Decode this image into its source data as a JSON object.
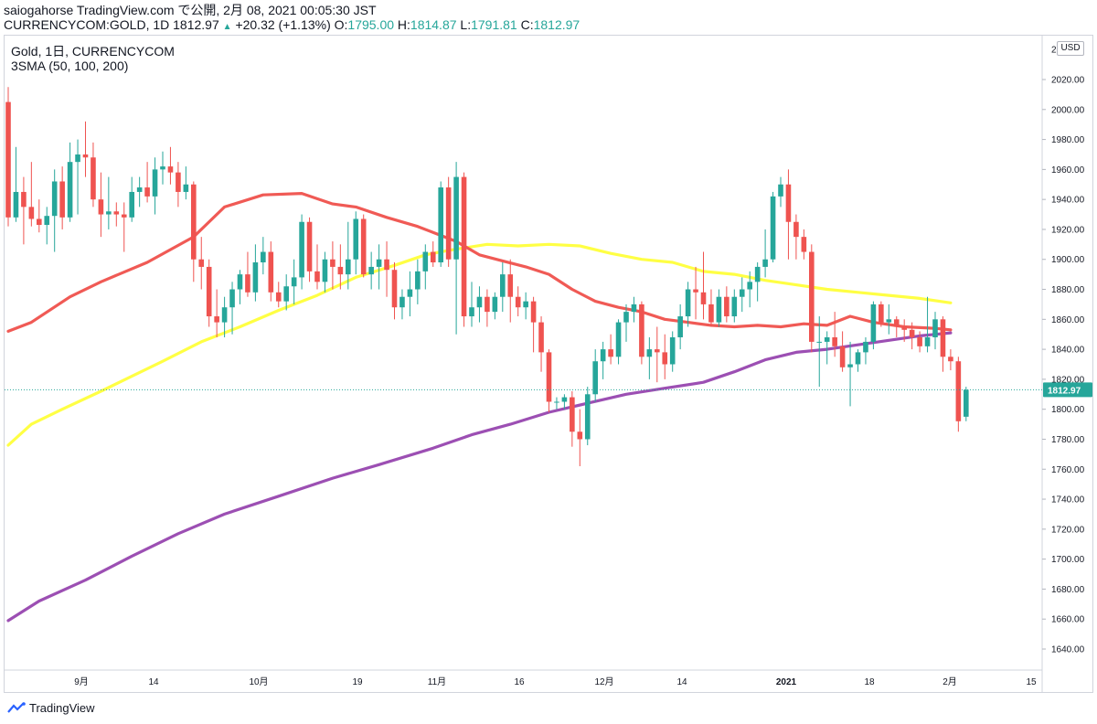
{
  "header": {
    "publish_line": "saiogahorse TradingView.com で公開, 2月 08, 2021 00:05:30 JST",
    "symbol_text": "CURRENCYCOM:GOLD, 1D 1812.97",
    "change_arrow": "▲",
    "change": "+20.32 (+1.13%)",
    "o_label": "O:",
    "o_value": "1795.00",
    "h_label": "H:",
    "h_value": "1814.87",
    "l_label": "L:",
    "l_value": "1791.81",
    "c_label": "C:",
    "c_value": "1812.97"
  },
  "legend": {
    "title": "Gold, 1日, CURRENCYCOM",
    "indicator": "3SMA (50, 100, 200)"
  },
  "currency_badge": "USD",
  "footer": {
    "brand": "TradingView",
    "logo_icon": "tradingview-logo-icon"
  },
  "colors": {
    "up": "#26a69a",
    "down": "#ef5350",
    "sma50": "#f05a55",
    "sma100": "#ffff44",
    "sma200": "#9c4fb3",
    "last_price_bg": "#26a69a"
  },
  "chart_data": {
    "type": "candlestick",
    "title": "Gold, 1日, CURRENCYCOM",
    "ylim": [
      1628,
      2036
    ],
    "y_ticks": [
      1640,
      1660,
      1680,
      1700,
      1720,
      1740,
      1760,
      1780,
      1800,
      1820,
      1840,
      1860,
      1880,
      1900,
      1920,
      1940,
      1960,
      1980,
      2000,
      2020
    ],
    "x_ticks": [
      "9月",
      "14",
      "10月",
      "19",
      "11月",
      "16",
      "12月",
      "14",
      "2021",
      "18",
      "2月",
      "15"
    ],
    "last_price": "1812.97",
    "candles": [
      {
        "o": 2005,
        "h": 2015,
        "l": 1922,
        "c": 1928
      },
      {
        "o": 1928,
        "h": 1975,
        "l": 1925,
        "c": 1945
      },
      {
        "o": 1945,
        "h": 1955,
        "l": 1910,
        "c": 1935
      },
      {
        "o": 1935,
        "h": 1965,
        "l": 1922,
        "c": 1927
      },
      {
        "o": 1927,
        "h": 1940,
        "l": 1918,
        "c": 1923
      },
      {
        "o": 1923,
        "h": 1935,
        "l": 1910,
        "c": 1929
      },
      {
        "o": 1929,
        "h": 1960,
        "l": 1905,
        "c": 1952
      },
      {
        "o": 1952,
        "h": 1962,
        "l": 1920,
        "c": 1928
      },
      {
        "o": 1928,
        "h": 1978,
        "l": 1925,
        "c": 1965
      },
      {
        "o": 1965,
        "h": 1980,
        "l": 1930,
        "c": 1970
      },
      {
        "o": 1970,
        "h": 1992,
        "l": 1955,
        "c": 1968
      },
      {
        "o": 1968,
        "h": 1978,
        "l": 1935,
        "c": 1940
      },
      {
        "o": 1940,
        "h": 1958,
        "l": 1915,
        "c": 1930
      },
      {
        "o": 1930,
        "h": 1955,
        "l": 1920,
        "c": 1932
      },
      {
        "o": 1932,
        "h": 1938,
        "l": 1922,
        "c": 1930
      },
      {
        "o": 1930,
        "h": 1938,
        "l": 1905,
        "c": 1928
      },
      {
        "o": 1928,
        "h": 1955,
        "l": 1925,
        "c": 1945
      },
      {
        "o": 1945,
        "h": 1955,
        "l": 1935,
        "c": 1948
      },
      {
        "o": 1948,
        "h": 1965,
        "l": 1938,
        "c": 1942
      },
      {
        "o": 1942,
        "h": 1968,
        "l": 1930,
        "c": 1960
      },
      {
        "o": 1960,
        "h": 1972,
        "l": 1950,
        "c": 1962
      },
      {
        "o": 1962,
        "h": 1975,
        "l": 1950,
        "c": 1958
      },
      {
        "o": 1958,
        "h": 1965,
        "l": 1935,
        "c": 1945
      },
      {
        "o": 1945,
        "h": 1962,
        "l": 1940,
        "c": 1950
      },
      {
        "o": 1950,
        "h": 1952,
        "l": 1885,
        "c": 1900
      },
      {
        "o": 1900,
        "h": 1915,
        "l": 1880,
        "c": 1895
      },
      {
        "o": 1895,
        "h": 1900,
        "l": 1855,
        "c": 1862
      },
      {
        "o": 1862,
        "h": 1880,
        "l": 1848,
        "c": 1858
      },
      {
        "o": 1858,
        "h": 1875,
        "l": 1848,
        "c": 1868
      },
      {
        "o": 1868,
        "h": 1885,
        "l": 1850,
        "c": 1880
      },
      {
        "o": 1880,
        "h": 1893,
        "l": 1870,
        "c": 1890
      },
      {
        "o": 1890,
        "h": 1905,
        "l": 1875,
        "c": 1878
      },
      {
        "o": 1878,
        "h": 1910,
        "l": 1872,
        "c": 1898
      },
      {
        "o": 1898,
        "h": 1915,
        "l": 1890,
        "c": 1905
      },
      {
        "o": 1905,
        "h": 1912,
        "l": 1872,
        "c": 1878
      },
      {
        "o": 1878,
        "h": 1885,
        "l": 1868,
        "c": 1872
      },
      {
        "o": 1872,
        "h": 1890,
        "l": 1866,
        "c": 1882
      },
      {
        "o": 1882,
        "h": 1900,
        "l": 1870,
        "c": 1888
      },
      {
        "o": 1888,
        "h": 1930,
        "l": 1880,
        "c": 1925
      },
      {
        "o": 1925,
        "h": 1928,
        "l": 1885,
        "c": 1892
      },
      {
        "o": 1892,
        "h": 1910,
        "l": 1880,
        "c": 1885
      },
      {
        "o": 1885,
        "h": 1905,
        "l": 1878,
        "c": 1900
      },
      {
        "o": 1900,
        "h": 1912,
        "l": 1880,
        "c": 1895
      },
      {
        "o": 1895,
        "h": 1910,
        "l": 1880,
        "c": 1890
      },
      {
        "o": 1890,
        "h": 1925,
        "l": 1880,
        "c": 1900
      },
      {
        "o": 1900,
        "h": 1932,
        "l": 1890,
        "c": 1927
      },
      {
        "o": 1927,
        "h": 1930,
        "l": 1888,
        "c": 1890
      },
      {
        "o": 1890,
        "h": 1905,
        "l": 1880,
        "c": 1895
      },
      {
        "o": 1895,
        "h": 1910,
        "l": 1880,
        "c": 1900
      },
      {
        "o": 1900,
        "h": 1912,
        "l": 1875,
        "c": 1893
      },
      {
        "o": 1893,
        "h": 1898,
        "l": 1860,
        "c": 1868
      },
      {
        "o": 1868,
        "h": 1880,
        "l": 1860,
        "c": 1875
      },
      {
        "o": 1875,
        "h": 1892,
        "l": 1862,
        "c": 1880
      },
      {
        "o": 1880,
        "h": 1900,
        "l": 1870,
        "c": 1892
      },
      {
        "o": 1892,
        "h": 1910,
        "l": 1880,
        "c": 1905
      },
      {
        "o": 1905,
        "h": 1912,
        "l": 1895,
        "c": 1898
      },
      {
        "o": 1898,
        "h": 1952,
        "l": 1895,
        "c": 1948
      },
      {
        "o": 1948,
        "h": 1955,
        "l": 1895,
        "c": 1900
      },
      {
        "o": 1900,
        "h": 1965,
        "l": 1850,
        "c": 1955
      },
      {
        "o": 1955,
        "h": 1958,
        "l": 1855,
        "c": 1862
      },
      {
        "o": 1862,
        "h": 1885,
        "l": 1855,
        "c": 1868
      },
      {
        "o": 1868,
        "h": 1882,
        "l": 1858,
        "c": 1875
      },
      {
        "o": 1875,
        "h": 1880,
        "l": 1855,
        "c": 1865
      },
      {
        "o": 1865,
        "h": 1878,
        "l": 1860,
        "c": 1875
      },
      {
        "o": 1875,
        "h": 1898,
        "l": 1865,
        "c": 1890
      },
      {
        "o": 1890,
        "h": 1900,
        "l": 1858,
        "c": 1875
      },
      {
        "o": 1875,
        "h": 1882,
        "l": 1862,
        "c": 1868
      },
      {
        "o": 1868,
        "h": 1878,
        "l": 1860,
        "c": 1872
      },
      {
        "o": 1872,
        "h": 1875,
        "l": 1838,
        "c": 1858
      },
      {
        "o": 1858,
        "h": 1862,
        "l": 1825,
        "c": 1838
      },
      {
        "o": 1838,
        "h": 1840,
        "l": 1798,
        "c": 1805
      },
      {
        "o": 1805,
        "h": 1808,
        "l": 1800,
        "c": 1805
      },
      {
        "o": 1805,
        "h": 1810,
        "l": 1800,
        "c": 1808
      },
      {
        "o": 1808,
        "h": 1812,
        "l": 1775,
        "c": 1785
      },
      {
        "o": 1785,
        "h": 1800,
        "l": 1762,
        "c": 1780
      },
      {
        "o": 1780,
        "h": 1815,
        "l": 1776,
        "c": 1810
      },
      {
        "o": 1810,
        "h": 1840,
        "l": 1805,
        "c": 1832
      },
      {
        "o": 1832,
        "h": 1845,
        "l": 1820,
        "c": 1840
      },
      {
        "o": 1840,
        "h": 1850,
        "l": 1830,
        "c": 1835
      },
      {
        "o": 1835,
        "h": 1860,
        "l": 1830,
        "c": 1858
      },
      {
        "o": 1858,
        "h": 1870,
        "l": 1845,
        "c": 1865
      },
      {
        "o": 1865,
        "h": 1875,
        "l": 1858,
        "c": 1870
      },
      {
        "o": 1870,
        "h": 1872,
        "l": 1830,
        "c": 1835
      },
      {
        "o": 1835,
        "h": 1848,
        "l": 1820,
        "c": 1840
      },
      {
        "o": 1840,
        "h": 1855,
        "l": 1818,
        "c": 1838
      },
      {
        "o": 1838,
        "h": 1850,
        "l": 1820,
        "c": 1830
      },
      {
        "o": 1830,
        "h": 1852,
        "l": 1825,
        "c": 1848
      },
      {
        "o": 1848,
        "h": 1870,
        "l": 1840,
        "c": 1862
      },
      {
        "o": 1862,
        "h": 1885,
        "l": 1855,
        "c": 1880
      },
      {
        "o": 1880,
        "h": 1895,
        "l": 1860,
        "c": 1878
      },
      {
        "o": 1878,
        "h": 1905,
        "l": 1860,
        "c": 1870
      },
      {
        "o": 1870,
        "h": 1880,
        "l": 1855,
        "c": 1858
      },
      {
        "o": 1858,
        "h": 1880,
        "l": 1855,
        "c": 1875
      },
      {
        "o": 1875,
        "h": 1882,
        "l": 1858,
        "c": 1862
      },
      {
        "o": 1862,
        "h": 1880,
        "l": 1858,
        "c": 1875
      },
      {
        "o": 1875,
        "h": 1888,
        "l": 1865,
        "c": 1880
      },
      {
        "o": 1880,
        "h": 1892,
        "l": 1868,
        "c": 1885
      },
      {
        "o": 1885,
        "h": 1898,
        "l": 1872,
        "c": 1895
      },
      {
        "o": 1895,
        "h": 1920,
        "l": 1888,
        "c": 1900
      },
      {
        "o": 1900,
        "h": 1945,
        "l": 1898,
        "c": 1942
      },
      {
        "o": 1942,
        "h": 1955,
        "l": 1935,
        "c": 1950
      },
      {
        "o": 1950,
        "h": 1960,
        "l": 1900,
        "c": 1925
      },
      {
        "o": 1925,
        "h": 1930,
        "l": 1900,
        "c": 1915
      },
      {
        "o": 1915,
        "h": 1920,
        "l": 1900,
        "c": 1905
      },
      {
        "o": 1905,
        "h": 1910,
        "l": 1838,
        "c": 1845
      },
      {
        "o": 1845,
        "h": 1862,
        "l": 1815,
        "c": 1845
      },
      {
        "o": 1845,
        "h": 1852,
        "l": 1830,
        "c": 1848
      },
      {
        "o": 1848,
        "h": 1865,
        "l": 1835,
        "c": 1842
      },
      {
        "o": 1842,
        "h": 1852,
        "l": 1825,
        "c": 1828
      },
      {
        "o": 1828,
        "h": 1845,
        "l": 1802,
        "c": 1830
      },
      {
        "o": 1830,
        "h": 1840,
        "l": 1825,
        "c": 1838
      },
      {
        "o": 1838,
        "h": 1848,
        "l": 1830,
        "c": 1845
      },
      {
        "o": 1845,
        "h": 1872,
        "l": 1840,
        "c": 1870
      },
      {
        "o": 1870,
        "h": 1872,
        "l": 1855,
        "c": 1858
      },
      {
        "o": 1858,
        "h": 1870,
        "l": 1850,
        "c": 1860
      },
      {
        "o": 1860,
        "h": 1862,
        "l": 1848,
        "c": 1855
      },
      {
        "o": 1855,
        "h": 1860,
        "l": 1845,
        "c": 1853
      },
      {
        "o": 1853,
        "h": 1858,
        "l": 1840,
        "c": 1848
      },
      {
        "o": 1848,
        "h": 1852,
        "l": 1838,
        "c": 1842
      },
      {
        "o": 1842,
        "h": 1875,
        "l": 1838,
        "c": 1848
      },
      {
        "o": 1848,
        "h": 1865,
        "l": 1840,
        "c": 1860
      },
      {
        "o": 1860,
        "h": 1862,
        "l": 1825,
        "c": 1835
      },
      {
        "o": 1835,
        "h": 1840,
        "l": 1826,
        "c": 1832
      },
      {
        "o": 1832,
        "h": 1835,
        "l": 1785,
        "c": 1792
      },
      {
        "o": 1795,
        "h": 1815,
        "l": 1792,
        "c": 1813
      }
    ],
    "sma50": [
      [
        0,
        1852
      ],
      [
        3,
        1858
      ],
      [
        8,
        1875
      ],
      [
        12,
        1885
      ],
      [
        18,
        1898
      ],
      [
        24,
        1915
      ],
      [
        28,
        1935
      ],
      [
        33,
        1943
      ],
      [
        38,
        1944
      ],
      [
        42,
        1937
      ],
      [
        45,
        1935
      ],
      [
        49,
        1928
      ],
      [
        53,
        1922
      ],
      [
        55,
        1918
      ],
      [
        58,
        1912
      ],
      [
        61,
        1903
      ],
      [
        64,
        1899
      ],
      [
        67,
        1895
      ],
      [
        70,
        1890
      ],
      [
        73,
        1880
      ],
      [
        76,
        1872
      ],
      [
        79,
        1868
      ],
      [
        82,
        1865
      ],
      [
        85,
        1860
      ],
      [
        88,
        1858
      ],
      [
        91,
        1856
      ],
      [
        94,
        1855
      ],
      [
        97,
        1856
      ],
      [
        100,
        1855
      ],
      [
        103,
        1857
      ],
      [
        106,
        1856
      ],
      [
        109,
        1862
      ],
      [
        112,
        1858
      ],
      [
        116,
        1855
      ],
      [
        120,
        1854
      ],
      [
        122,
        1853
      ]
    ],
    "sma100": [
      [
        0,
        1776
      ],
      [
        3,
        1790
      ],
      [
        7,
        1800
      ],
      [
        12,
        1812
      ],
      [
        16,
        1822
      ],
      [
        20,
        1832
      ],
      [
        25,
        1845
      ],
      [
        30,
        1855
      ],
      [
        35,
        1866
      ],
      [
        40,
        1876
      ],
      [
        45,
        1888
      ],
      [
        50,
        1896
      ],
      [
        54,
        1903
      ],
      [
        57,
        1906
      ],
      [
        62,
        1910
      ],
      [
        66,
        1909
      ],
      [
        70,
        1910
      ],
      [
        74,
        1909
      ],
      [
        78,
        1904
      ],
      [
        82,
        1900
      ],
      [
        86,
        1898
      ],
      [
        90,
        1892
      ],
      [
        94,
        1890
      ],
      [
        98,
        1886
      ],
      [
        102,
        1883
      ],
      [
        106,
        1880
      ],
      [
        110,
        1878
      ],
      [
        114,
        1876
      ],
      [
        118,
        1874
      ],
      [
        122,
        1871
      ]
    ],
    "sma200": [
      [
        0,
        1659
      ],
      [
        4,
        1672
      ],
      [
        10,
        1686
      ],
      [
        16,
        1702
      ],
      [
        22,
        1717
      ],
      [
        28,
        1730
      ],
      [
        35,
        1742
      ],
      [
        42,
        1754
      ],
      [
        48,
        1763
      ],
      [
        55,
        1774
      ],
      [
        60,
        1783
      ],
      [
        65,
        1790
      ],
      [
        70,
        1798
      ],
      [
        75,
        1804
      ],
      [
        80,
        1810
      ],
      [
        85,
        1814
      ],
      [
        90,
        1818
      ],
      [
        94,
        1825
      ],
      [
        98,
        1833
      ],
      [
        102,
        1838
      ],
      [
        106,
        1840
      ],
      [
        110,
        1843
      ],
      [
        114,
        1846
      ],
      [
        118,
        1849
      ],
      [
        122,
        1851
      ]
    ]
  }
}
